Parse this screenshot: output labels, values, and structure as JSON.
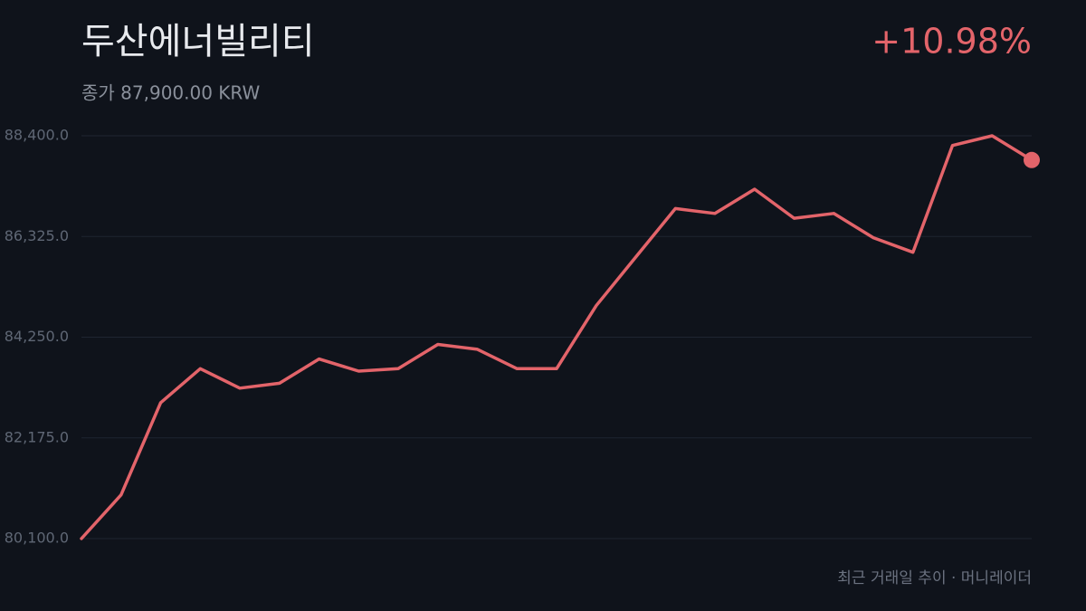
{
  "chart_data": {
    "type": "line",
    "title": "두산에너빌리티",
    "subtitle": "종가 87,900.00 KRW",
    "change": "+10.98%",
    "footer": "최근 거래일 추이 · 머니레이더",
    "color": "#e3646a",
    "grid": true,
    "values": [
      80100,
      81000,
      82900,
      83600,
      83200,
      83300,
      83800,
      83550,
      83600,
      84100,
      84000,
      83600,
      83600,
      84900,
      85900,
      86900,
      86800,
      87300,
      86700,
      86800,
      86300,
      86000,
      88200,
      88400,
      87900
    ],
    "ylim": [
      80100,
      88400
    ],
    "yticks": [
      {
        "value": 80100,
        "label": "80,100.0"
      },
      {
        "value": 82175,
        "label": "82,175.0"
      },
      {
        "value": 84250,
        "label": "84,250.0"
      },
      {
        "value": 86325,
        "label": "86,325.0"
      },
      {
        "value": 88400,
        "label": "88,400.0"
      }
    ]
  }
}
